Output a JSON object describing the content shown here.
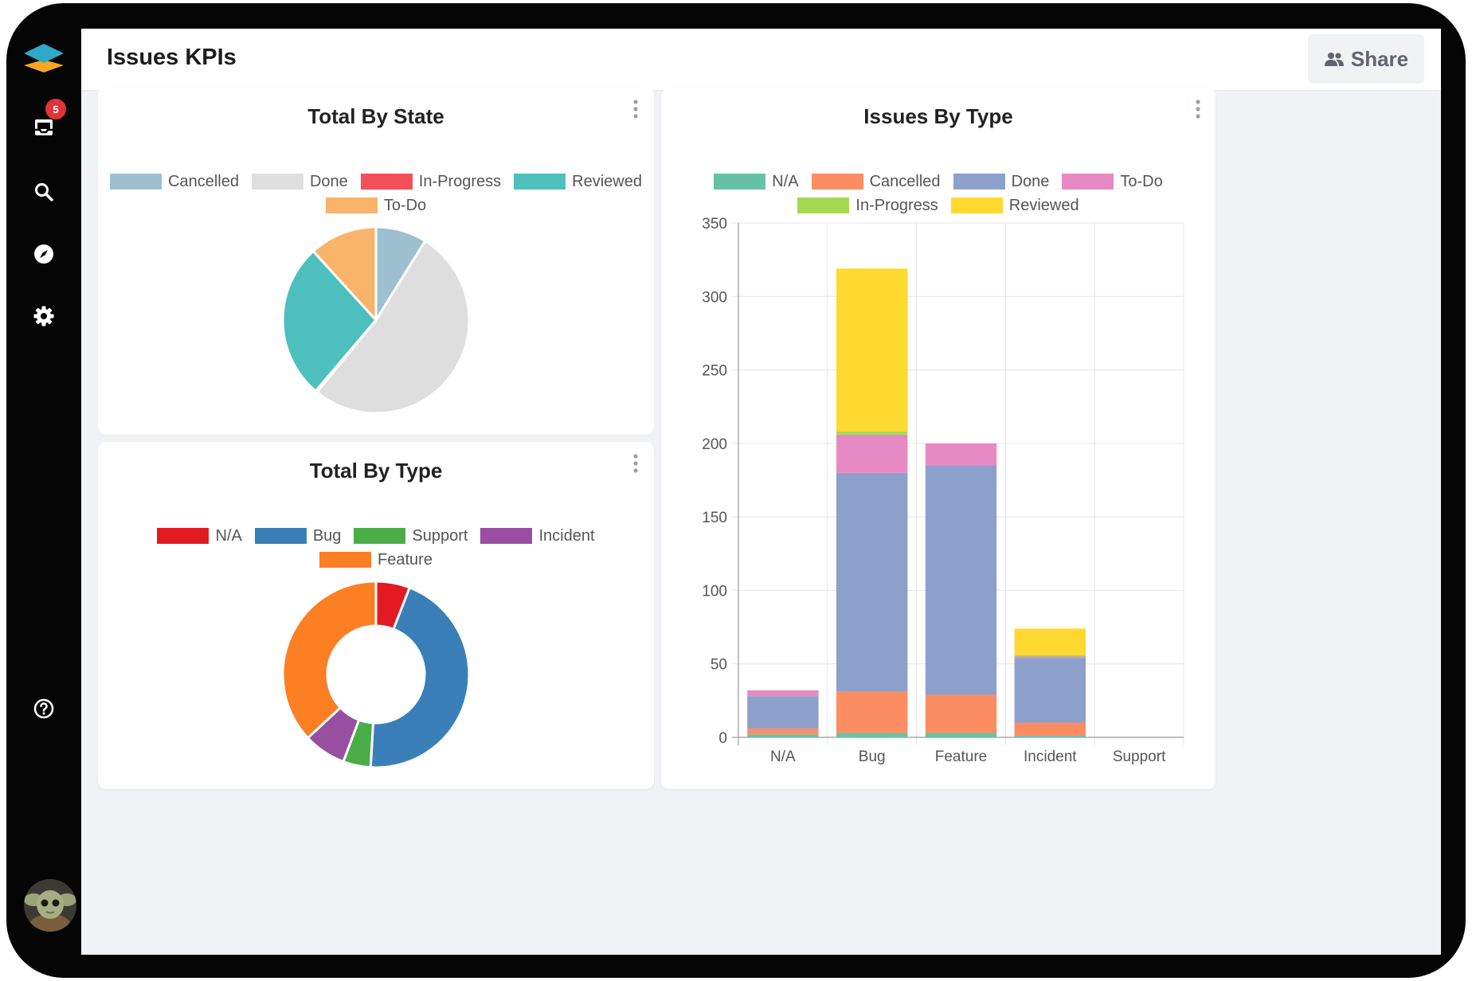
{
  "header": {
    "title": "Issues KPIs",
    "share_label": "Share"
  },
  "sidebar": {
    "inbox_badge": "5"
  },
  "cards": {
    "total_by_state": {
      "title": "Total By State"
    },
    "total_by_type": {
      "title": "Total By Type"
    },
    "issues_by_type": {
      "title": "Issues By Type"
    }
  },
  "chart_data": [
    {
      "type": "pie",
      "title": "Total By State",
      "categories": [
        "Cancelled",
        "Done",
        "In-Progress",
        "Reviewed",
        "To-Do"
      ],
      "values": [
        58,
        341,
        2,
        177,
        77
      ],
      "colors": [
        "#9dbfcf",
        "#dedede",
        "#f3505a",
        "#4dbfbc",
        "#f9b46b"
      ],
      "legend": "top"
    },
    {
      "type": "pie",
      "title": "Total By Type",
      "categories": [
        "N/A",
        "Bug",
        "Support",
        "Incident",
        "Feature"
      ],
      "values": [
        32,
        245,
        26,
        40,
        201
      ],
      "colors": [
        "#e31a22",
        "#3a7fb8",
        "#4aad47",
        "#984ea1",
        "#fd7f23"
      ],
      "donut": true,
      "legend": "top"
    },
    {
      "type": "bar",
      "stacked": true,
      "title": "Issues By Type",
      "categories": [
        "N/A",
        "Bug",
        "Feature",
        "Incident",
        "Support"
      ],
      "series": [
        {
          "name": "N/A",
          "color": "#66c2a5",
          "values": [
            2,
            3,
            3,
            1,
            0
          ]
        },
        {
          "name": "Cancelled",
          "color": "#fc8d62",
          "values": [
            4,
            28,
            26,
            9,
            0
          ]
        },
        {
          "name": "Done",
          "color": "#8da0cb",
          "values": [
            22,
            149,
            156,
            44,
            0
          ]
        },
        {
          "name": "To-Do",
          "color": "#e78ac3",
          "values": [
            4,
            26,
            15,
            1,
            0
          ]
        },
        {
          "name": "In-Progress",
          "color": "#a6d854",
          "values": [
            0,
            2,
            0,
            1,
            0
          ]
        },
        {
          "name": "Reviewed",
          "color": "#ffd92f",
          "values": [
            0,
            111,
            0,
            18,
            0
          ]
        }
      ],
      "ylim": [
        0,
        350
      ],
      "yticks": [
        0,
        50,
        100,
        150,
        200,
        250,
        300,
        350
      ],
      "grid": true,
      "legend": "top"
    }
  ]
}
